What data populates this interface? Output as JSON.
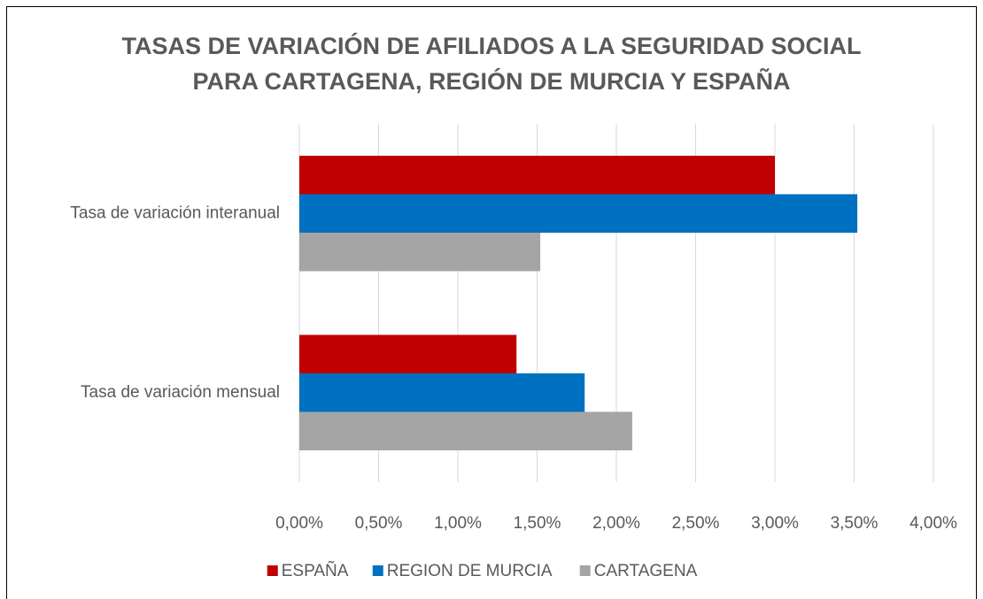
{
  "chart_data": {
    "type": "barh",
    "title": "TASAS DE VARIACIÓN DE AFILIADOS A LA SEGURIDAD SOCIAL PARA CARTAGENA, REGIÓN DE MURCIA Y ESPAÑA",
    "categories": [
      "Tasa de variación interanual",
      "Tasa de variación mensual"
    ],
    "series": [
      {
        "name": "ESPAÑA",
        "color": "#c00000",
        "values": [
          3.0,
          1.37
        ]
      },
      {
        "name": "REGION DE MURCIA",
        "color": "#0070c0",
        "values": [
          3.52,
          1.8
        ]
      },
      {
        "name": "CARTAGENA",
        "color": "#a5a5a5",
        "values": [
          1.52,
          2.1
        ]
      }
    ],
    "xlim": [
      0,
      4
    ],
    "xticks": [
      {
        "value": 0,
        "label": "0,00%"
      },
      {
        "value": 0.5,
        "label": "0,50%"
      },
      {
        "value": 1,
        "label": "1,00%"
      },
      {
        "value": 1.5,
        "label": "1,50%"
      },
      {
        "value": 2,
        "label": "2,00%"
      },
      {
        "value": 2.5,
        "label": "2,50%"
      },
      {
        "value": 3,
        "label": "3,00%"
      },
      {
        "value": 3.5,
        "label": "3,50%"
      },
      {
        "value": 4,
        "label": "4,00%"
      }
    ],
    "grid": true,
    "legend": "bottom"
  }
}
